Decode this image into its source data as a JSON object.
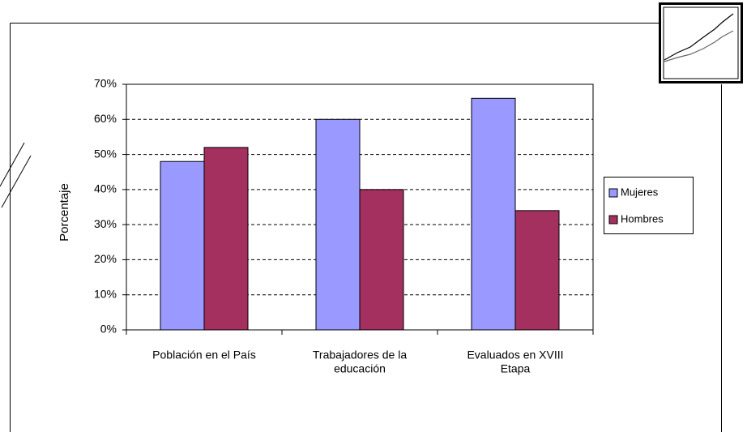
{
  "chart_data": {
    "type": "bar",
    "ylabel": "Porcentaje",
    "categories": [
      [
        "Población en el País"
      ],
      [
        "Trabajadores de la",
        "educación"
      ],
      [
        "Evaluados en XVIII",
        "Etapa"
      ]
    ],
    "series": [
      {
        "name": "Mujeres",
        "color": "#9999ff",
        "values": [
          48,
          60,
          66
        ]
      },
      {
        "name": "Hombres",
        "color": "#a3305f",
        "values": [
          52,
          40,
          34
        ]
      }
    ],
    "ylim": [
      0,
      70
    ],
    "yticks": [
      {
        "value": 0,
        "label": "0%"
      },
      {
        "value": 10,
        "label": "10%"
      },
      {
        "value": 20,
        "label": "20%"
      },
      {
        "value": 30,
        "label": "30%"
      },
      {
        "value": 40,
        "label": "40%"
      },
      {
        "value": 50,
        "label": "50%"
      },
      {
        "value": 60,
        "label": "60%"
      },
      {
        "value": 70,
        "label": "70%"
      }
    ],
    "grid": true,
    "legend": "right"
  }
}
